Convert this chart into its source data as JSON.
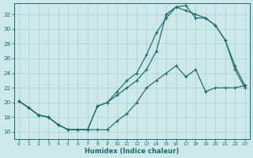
{
  "background_color": "#cce8e8",
  "grid_color": "#a8d0d0",
  "line_color": "#1a6b6b",
  "xlabel": "Humidex (Indice chaleur)",
  "xlim": [
    -0.5,
    23.5
  ],
  "ylim": [
    15.0,
    33.5
  ],
  "yticks": [
    16,
    18,
    20,
    22,
    24,
    26,
    28,
    30,
    32
  ],
  "xticks": [
    0,
    1,
    2,
    3,
    4,
    5,
    6,
    7,
    8,
    9,
    10,
    11,
    12,
    13,
    14,
    15,
    16,
    17,
    18,
    19,
    20,
    21,
    22,
    23
  ],
  "line1_x": [
    0,
    1,
    2,
    3,
    4,
    5,
    6,
    7,
    8,
    9,
    10,
    11,
    12,
    13,
    14,
    15,
    16,
    17,
    18,
    19,
    20,
    21,
    22,
    23
  ],
  "line1_y": [
    20.2,
    19.3,
    18.3,
    18.0,
    17.0,
    16.3,
    16.3,
    16.3,
    16.3,
    16.3,
    17.5,
    18.5,
    20.0,
    22.0,
    23.0,
    24.0,
    25.0,
    23.5,
    24.5,
    21.5,
    22.0,
    22.0,
    22.0,
    22.3
  ],
  "line2_x": [
    0,
    1,
    2,
    3,
    4,
    5,
    6,
    7,
    8,
    9,
    10,
    11,
    12,
    13,
    14,
    15,
    16,
    17,
    18,
    19,
    20,
    21,
    22,
    23
  ],
  "line2_y": [
    20.2,
    19.3,
    18.3,
    18.0,
    17.0,
    16.3,
    16.3,
    16.3,
    19.5,
    20.0,
    21.5,
    23.0,
    24.0,
    26.5,
    29.5,
    31.5,
    33.0,
    33.2,
    31.5,
    31.5,
    30.5,
    28.5,
    25.0,
    22.3
  ],
  "line3_x": [
    0,
    1,
    2,
    3,
    4,
    5,
    6,
    7,
    8,
    9,
    10,
    11,
    12,
    13,
    14,
    15,
    16,
    17,
    18,
    19,
    20,
    21,
    22,
    23
  ],
  "line3_y": [
    20.2,
    19.3,
    18.3,
    18.0,
    17.0,
    16.3,
    16.3,
    16.3,
    19.5,
    20.0,
    21.0,
    22.0,
    23.0,
    24.5,
    27.0,
    32.0,
    33.0,
    32.5,
    32.0,
    31.5,
    30.5,
    28.5,
    24.5,
    22.0
  ]
}
